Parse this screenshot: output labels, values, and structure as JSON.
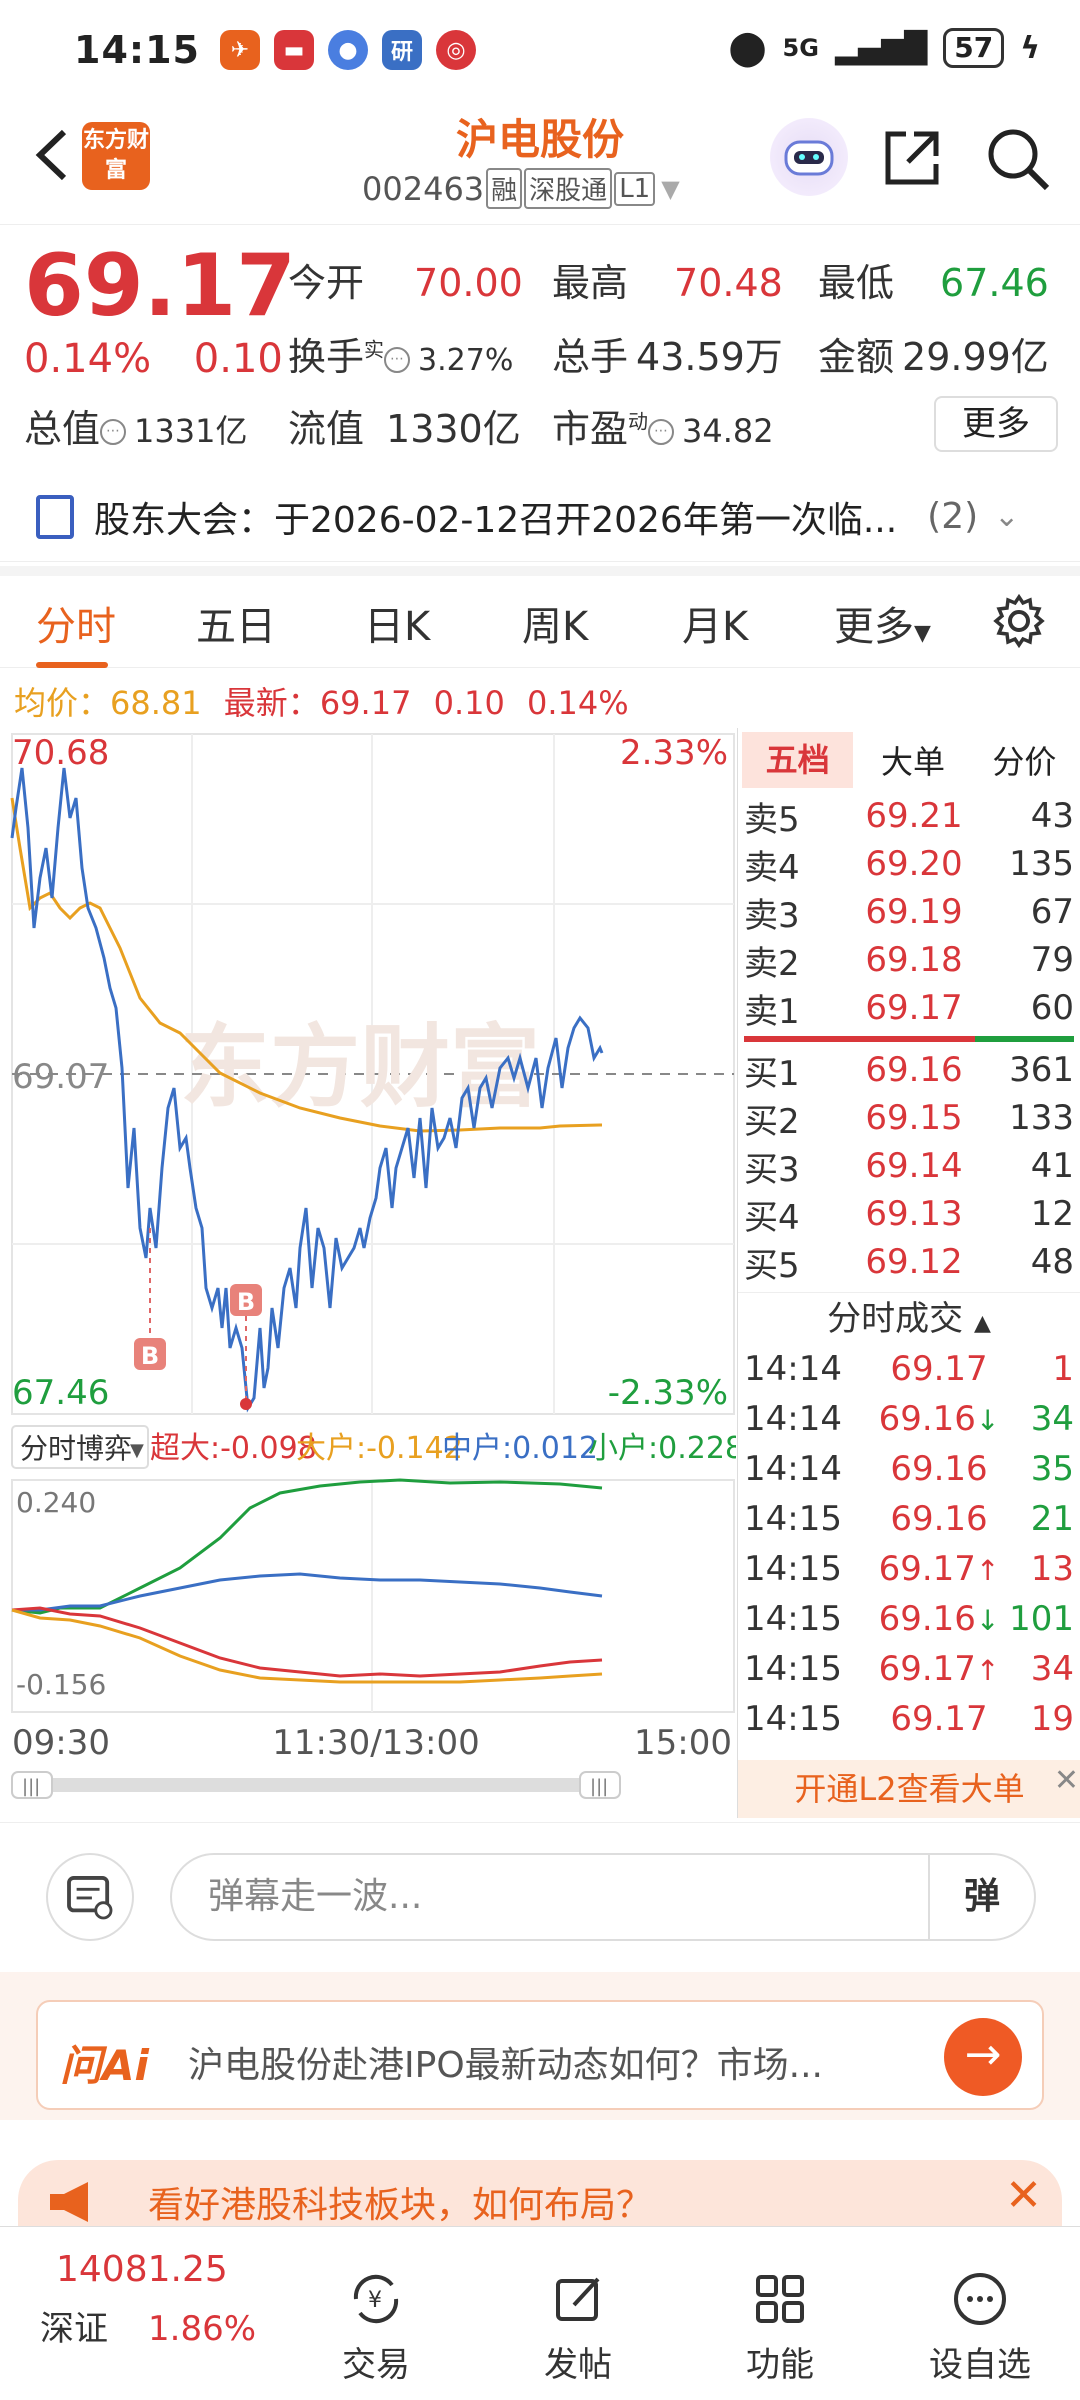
{
  "status_bar": {
    "time": "14:15",
    "network": "5G",
    "battery": "57"
  },
  "header": {
    "logo_text": "东方财富",
    "stock_name": "沪电股份",
    "stock_code": "002463",
    "tags": [
      "融",
      "深股通",
      "L1"
    ]
  },
  "quote": {
    "price": "69.17",
    "change_pct": "0.14%",
    "change": "0.10",
    "open_label": "今开",
    "open": "70.00",
    "high_label": "最高",
    "high": "70.48",
    "low_label": "最低",
    "low": "67.46",
    "turnover_label": "换手",
    "turnover_sup": "实",
    "turnover": "3.27%",
    "volume_label": "总手",
    "volume": "43.59万",
    "amount_label": "金额",
    "amount": "29.99亿",
    "mktcap_label": "总值",
    "mktcap": "1331亿",
    "float_label": "流值",
    "float_cap": "1330亿",
    "pe_label": "市盈",
    "pe_sup": "动",
    "pe": "34.82",
    "more_button": "更多"
  },
  "notice": {
    "text": "股东大会：于2026-02-12召开2026年第一次临...",
    "count": "(2)"
  },
  "tabs": [
    "分时",
    "五日",
    "日K",
    "周K",
    "月K",
    "更多"
  ],
  "info_line": {
    "avg_label": "均价：",
    "avg": "68.81",
    "last_label": "最新：",
    "last": "69.17",
    "chg": "0.10",
    "pct": "0.14%"
  },
  "chart": {
    "y_top": "70.68",
    "y_mid": "69.07",
    "y_bot": "67.46",
    "pct_top": "2.33%",
    "pct_bot": "-2.33%",
    "marker_label": "B",
    "x_labels": [
      "09:30",
      "11:30/13:00",
      "15:00"
    ],
    "flow_selector": "分时博弈",
    "flow_legend": [
      {
        "label": "超大:",
        "value": "-0.098",
        "color": "#d9363a"
      },
      {
        "label": "大户:",
        "value": "-0.142",
        "color": "#e8a020"
      },
      {
        "label": "中户:",
        "value": "0.012",
        "color": "#3a6fc4"
      },
      {
        "label": "小户:",
        "value": "0.228",
        "color": "#1f9e3e"
      }
    ],
    "flow_y_top": "0.240",
    "flow_y_bot": "-0.156",
    "watermark": "东方财富"
  },
  "orderbook": {
    "tabs": [
      "五档",
      "大单",
      "分价"
    ],
    "asks": [
      {
        "label": "卖5",
        "price": "69.21",
        "qty": "43"
      },
      {
        "label": "卖4",
        "price": "69.20",
        "qty": "135"
      },
      {
        "label": "卖3",
        "price": "69.19",
        "qty": "67"
      },
      {
        "label": "卖2",
        "price": "69.18",
        "qty": "79"
      },
      {
        "label": "卖1",
        "price": "69.17",
        "qty": "60"
      }
    ],
    "bids": [
      {
        "label": "买1",
        "price": "69.16",
        "qty": "361"
      },
      {
        "label": "买2",
        "price": "69.15",
        "qty": "133"
      },
      {
        "label": "买3",
        "price": "69.14",
        "qty": "41"
      },
      {
        "label": "买4",
        "price": "69.13",
        "qty": "12"
      },
      {
        "label": "买5",
        "price": "69.12",
        "qty": "48"
      }
    ],
    "ticks_title": "分时成交",
    "ticks": [
      {
        "time": "14:14",
        "price": "69.17",
        "arrow": "",
        "qty": "1",
        "color": "#d9363a"
      },
      {
        "time": "14:14",
        "price": "69.16",
        "arrow": "↓",
        "qty": "34",
        "color": "#1f9e3e"
      },
      {
        "time": "14:14",
        "price": "69.16",
        "arrow": "",
        "qty": "35",
        "color": "#1f9e3e"
      },
      {
        "time": "14:15",
        "price": "69.16",
        "arrow": "",
        "qty": "21",
        "color": "#1f9e3e"
      },
      {
        "time": "14:15",
        "price": "69.17",
        "arrow": "↑",
        "qty": "13",
        "color": "#d9363a"
      },
      {
        "time": "14:15",
        "price": "69.16",
        "arrow": "↓",
        "qty": "101",
        "color": "#1f9e3e"
      },
      {
        "time": "14:15",
        "price": "69.17",
        "arrow": "↑",
        "qty": "34",
        "color": "#d9363a"
      },
      {
        "time": "14:15",
        "price": "69.17",
        "arrow": "",
        "qty": "19",
        "color": "#d9363a"
      }
    ],
    "l2_banner": "开通L2查看大单"
  },
  "danmu": {
    "placeholder": "弹幕走一波...",
    "button": "弹"
  },
  "ai": {
    "logo": "问Ai",
    "text": "沪电股份赴港IPO最新动态如何？市场..."
  },
  "promo": {
    "text": "看好港股科技板块，如何布局？"
  },
  "bottom_nav": {
    "index_value": "14081.25",
    "index_name": "深证",
    "index_pct": "1.86%",
    "items": [
      "交易",
      "发帖",
      "功能",
      "设自选"
    ]
  }
}
